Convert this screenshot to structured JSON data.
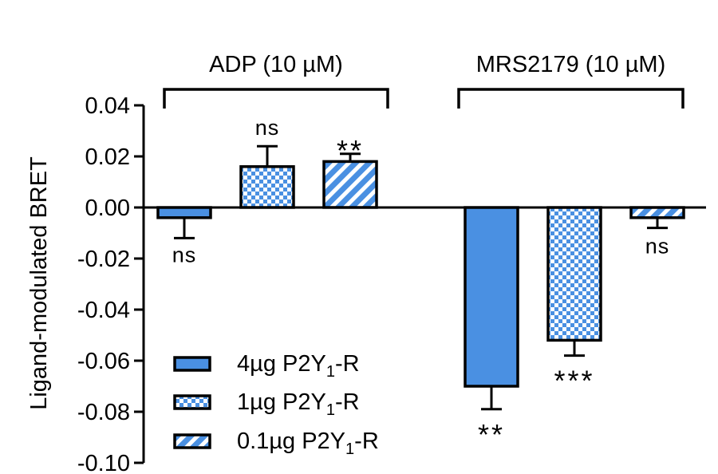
{
  "chart_data": {
    "type": "bar",
    "ylabel": "Ligand-modulated BRET",
    "ylim": [
      -0.1,
      0.04
    ],
    "yticks": [
      "0.04",
      "0.02",
      "0.00",
      "-0.02",
      "-0.04",
      "-0.06",
      "-0.08",
      "-0.10"
    ],
    "ytick_values": [
      0.04,
      0.02,
      0.0,
      -0.02,
      -0.04,
      -0.06,
      -0.08,
      -0.1
    ],
    "groups": [
      {
        "label": "ADP (10 µM)"
      },
      {
        "label": "MRS2179 (10 µM)"
      }
    ],
    "series": [
      {
        "name": "4µg P2Y1-R",
        "name_base": "4µg P2Y",
        "name_sub": "1",
        "name_suffix": "-R",
        "pattern": "solid",
        "values": [
          -0.004,
          -0.07
        ],
        "errors": [
          0.008,
          0.009
        ],
        "significance": [
          "ns",
          "**"
        ]
      },
      {
        "name": "1µg P2Y1-R",
        "name_base": "1µg P2Y",
        "name_sub": "1",
        "name_suffix": "-R",
        "pattern": "checker",
        "values": [
          0.016,
          -0.052
        ],
        "errors": [
          0.008,
          0.006
        ],
        "significance": [
          "ns",
          "***"
        ]
      },
      {
        "name": "0.1µg P2Y1-R",
        "name_base": "0.1µg P2Y",
        "name_sub": "1",
        "name_suffix": "-R",
        "pattern": "stripes",
        "values": [
          0.018,
          -0.004
        ],
        "errors": [
          0.003,
          0.004
        ],
        "significance": [
          "**",
          "ns"
        ]
      }
    ],
    "colors": {
      "fill": "#4a90e2",
      "light": "#ffffff",
      "outline": "#000000"
    },
    "legend_position": "bottom-left",
    "grid": false
  }
}
